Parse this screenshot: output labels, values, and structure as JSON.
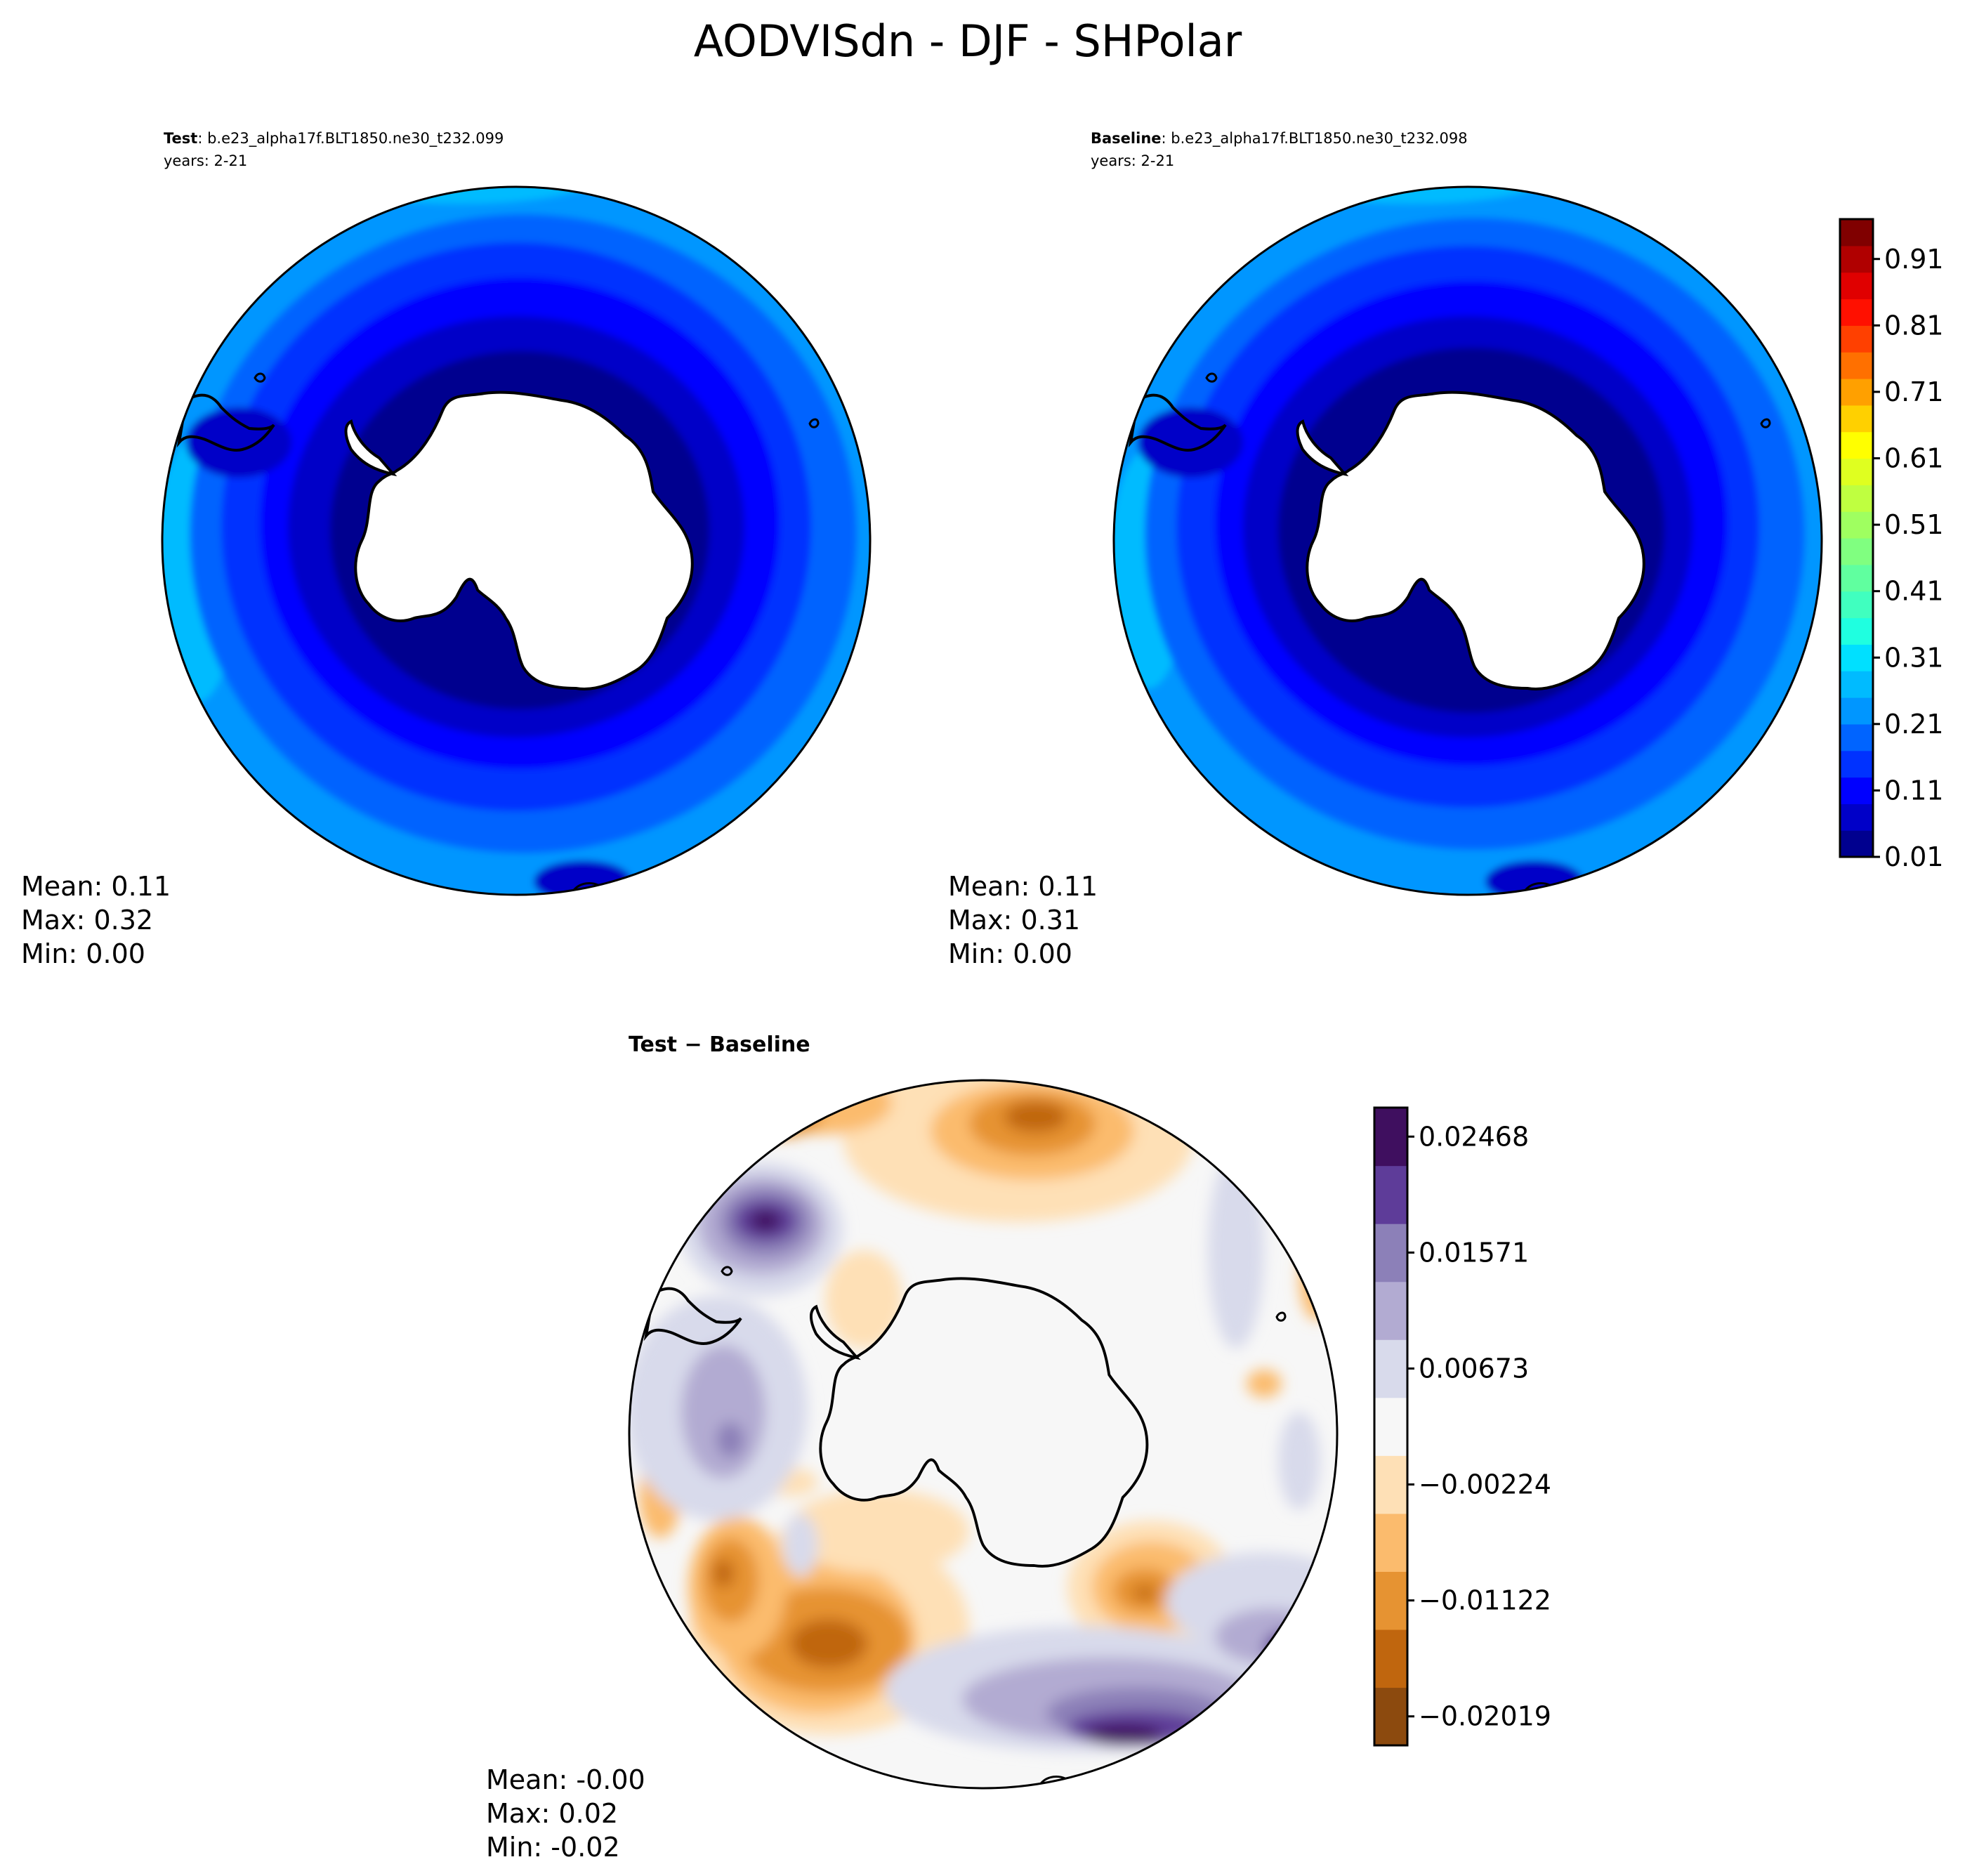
{
  "title": "AODVISdn - DJF - SHPolar",
  "panels": {
    "test": {
      "label_bold": "Test",
      "label_rest": ": b.e23_alpha17f.BLT1850.ne30_t232.099",
      "years": "years: 2-21",
      "stats": {
        "mean": "Mean:  0.11",
        "max": "Max:  0.32",
        "min": "Min:  0.00"
      }
    },
    "baseline": {
      "label_bold": "Baseline",
      "label_rest": ": b.e23_alpha17f.BLT1850.ne30_t232.098",
      "years": "years: 2-21",
      "stats": {
        "mean": "Mean:  0.11",
        "max": "Max:  0.31",
        "min": "Min:  0.00"
      }
    },
    "diff": {
      "label": "Test − Baseline",
      "stats": {
        "mean": "Mean: -0.00",
        "max": "Max:  0.02",
        "min": "Min: -0.02"
      }
    }
  },
  "colorbars": {
    "main": {
      "ticks": [
        "0.01",
        "0.11",
        "0.21",
        "0.31",
        "0.41",
        "0.51",
        "0.61",
        "0.71",
        "0.81",
        "0.91"
      ],
      "colors": [
        "#00008f",
        "#0000c8",
        "#0000ff",
        "#0032ff",
        "#0064ff",
        "#0096ff",
        "#00bbff",
        "#00e0ff",
        "#1fffe0",
        "#40ffbf",
        "#60ff9f",
        "#80ff80",
        "#9fff60",
        "#bfff40",
        "#dfff20",
        "#ffff00",
        "#ffd000",
        "#ffa000",
        "#ff7000",
        "#ff4000",
        "#ff1000",
        "#e00000",
        "#b00000",
        "#800000"
      ]
    },
    "diff": {
      "ticks": [
        "0.02468",
        "0.01571",
        "0.00673",
        "−0.00224",
        "−0.01122",
        "−0.02019"
      ],
      "colors": [
        "#8c4a0e",
        "#c0660e",
        "#e69332",
        "#fbbb6d",
        "#fee0b6",
        "#f7f7f7",
        "#d8daeb",
        "#b2abd2",
        "#8c80b8",
        "#5e3c99",
        "#3f0f5f"
      ]
    }
  },
  "chart_data": [
    {
      "type": "heatmap",
      "title": "Test",
      "projection": "south-polar-stereographic",
      "variable": "AODVISdn",
      "season": "DJF",
      "stats": {
        "mean": 0.11,
        "max": 0.32,
        "min": 0.0
      },
      "colorbar_range": [
        0.01,
        0.96
      ],
      "colorbar_ticks": [
        0.01,
        0.11,
        0.21,
        0.31,
        0.41,
        0.51,
        0.61,
        0.71,
        0.81,
        0.91
      ]
    },
    {
      "type": "heatmap",
      "title": "Baseline",
      "projection": "south-polar-stereographic",
      "variable": "AODVISdn",
      "season": "DJF",
      "stats": {
        "mean": 0.11,
        "max": 0.31,
        "min": 0.0
      },
      "colorbar_range": [
        0.01,
        0.96
      ],
      "colorbar_ticks": [
        0.01,
        0.11,
        0.21,
        0.31,
        0.41,
        0.51,
        0.61,
        0.71,
        0.81,
        0.91
      ]
    },
    {
      "type": "heatmap",
      "title": "Test − Baseline",
      "projection": "south-polar-stereographic",
      "stats": {
        "mean": -0.0,
        "max": 0.02,
        "min": -0.02
      },
      "colorbar_range": [
        -0.02468,
        0.02468
      ],
      "colorbar_ticks": [
        0.02468,
        0.01571,
        0.00673,
        -0.00224,
        -0.01122,
        -0.02019
      ]
    }
  ]
}
